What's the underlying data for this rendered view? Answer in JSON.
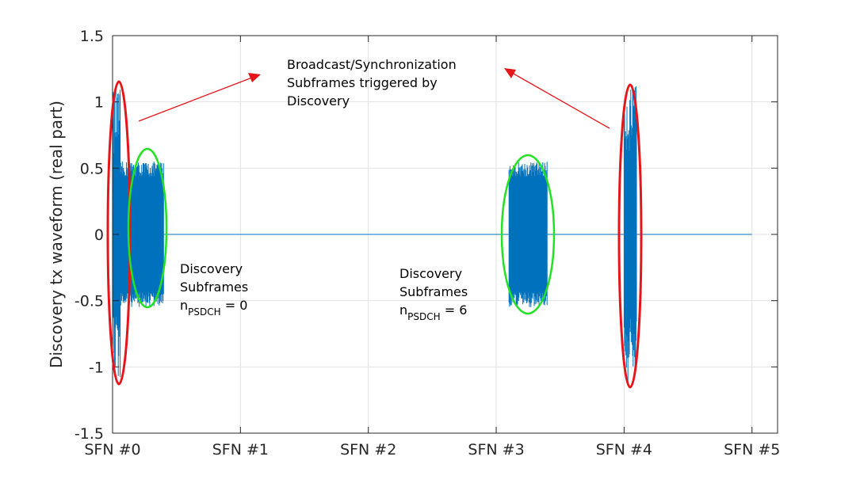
{
  "chart_data": {
    "type": "line",
    "ylabel": "Discovery tx waveform (real part)",
    "xlabel": "",
    "title": "",
    "xlim": [
      0,
      5.2
    ],
    "ylim": [
      -1.5,
      1.5
    ],
    "x_ticks": [
      0,
      1,
      2,
      3,
      4,
      5
    ],
    "x_tick_labels": [
      "SFN #0",
      "SFN #1",
      "SFN #2",
      "SFN #3",
      "SFN #4",
      "SFN #5"
    ],
    "y_ticks": [
      -1.5,
      -1,
      -0.5,
      0,
      0.5,
      1,
      1.5
    ],
    "y_tick_labels": [
      "-1.5",
      "-1",
      "-0.5",
      "0",
      "0.5",
      "1",
      "1.5"
    ],
    "grid": true,
    "series": [
      {
        "color": "#0072BD",
        "baseline_x_range": [
          0,
          5
        ],
        "baseline_value": 0,
        "bursts": [
          {
            "kind": "broadcast-sync",
            "x_range": [
              0,
              0.06
            ],
            "amplitude": 1.1
          },
          {
            "kind": "discovery",
            "x_range": [
              0.06,
              0.4
            ],
            "amplitude": 0.55
          },
          {
            "kind": "discovery",
            "x_range": [
              3.1,
              3.4
            ],
            "amplitude": 0.55
          },
          {
            "kind": "broadcast-sync",
            "x_range": [
              4.0,
              4.1
            ],
            "amplitude": 1.13
          }
        ]
      }
    ],
    "annotations": {
      "broadcast_text": [
        "Broadcast/Synchronization",
        "Subframes triggered by",
        "Discovery"
      ],
      "discovery_left": {
        "line1": "Discovery",
        "line2": "Subframes",
        "n_main": "n",
        "n_sub": "PSDCH",
        "n_value": " = 0"
      },
      "discovery_right": {
        "line1": "Discovery",
        "line2": "Subframes",
        "n_main": "n",
        "n_sub": "PSDCH",
        "n_value": " = 6"
      },
      "colors": {
        "broadcast_ellipse": "#E4161B",
        "discovery_ellipse": "#23E223",
        "arrow": "#E4161B"
      }
    }
  }
}
